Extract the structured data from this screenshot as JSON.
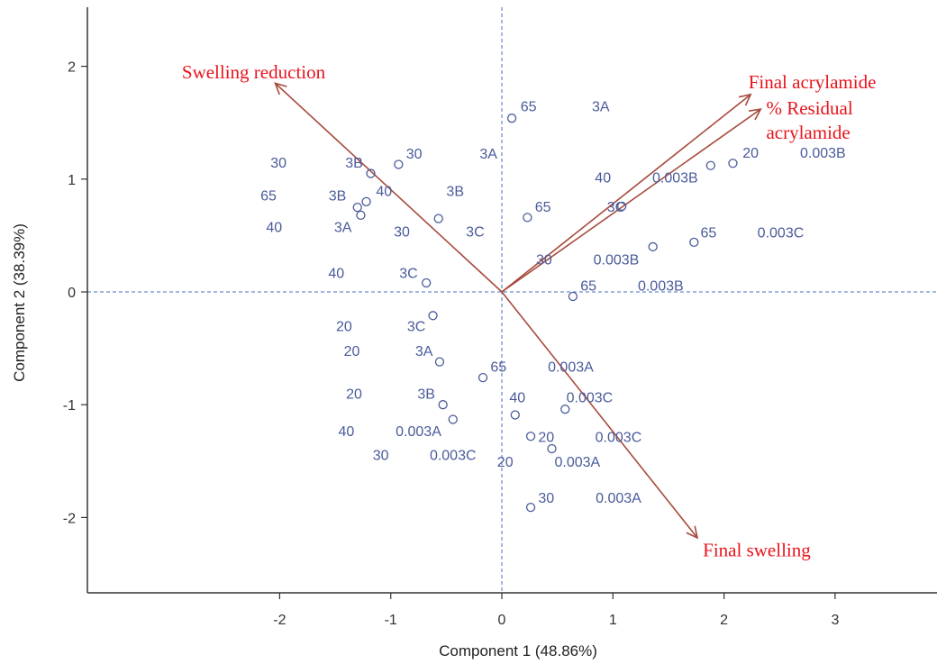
{
  "chart_data": {
    "type": "scatter",
    "title": "",
    "xlabel": "Component 1 (48.86%)",
    "ylabel": "Component 2 (38.39%)",
    "xlim": [
      -3.7,
      3.9
    ],
    "ylim": [
      -2.7,
      2.5
    ],
    "xticks": [
      -2,
      -1,
      0,
      1,
      2,
      3
    ],
    "yticks": [
      -2,
      -1,
      0,
      1,
      2
    ],
    "grid": false,
    "reference_lines": {
      "x": 0,
      "y": 0,
      "style": "dashed"
    },
    "colors": {
      "points": "#4a5b9a",
      "arrows": "#a84a3c",
      "arrow_labels": "#e8141c",
      "axes": "#333333",
      "reference": "#4a6fc0"
    },
    "points": [
      {
        "x": 0.09,
        "y": 1.54
      },
      {
        "x": -0.93,
        "y": 1.13
      },
      {
        "x": -1.18,
        "y": 1.05
      },
      {
        "x": -1.22,
        "y": 0.8
      },
      {
        "x": -1.3,
        "y": 0.75
      },
      {
        "x": -1.27,
        "y": 0.68
      },
      {
        "x": -0.57,
        "y": 0.65
      },
      {
        "x": 0.23,
        "y": 0.66
      },
      {
        "x": 1.08,
        "y": 0.76
      },
      {
        "x": 1.88,
        "y": 1.12
      },
      {
        "x": 2.08,
        "y": 1.14
      },
      {
        "x": 1.36,
        "y": 0.4
      },
      {
        "x": 1.73,
        "y": 0.44
      },
      {
        "x": -0.68,
        "y": 0.08
      },
      {
        "x": 0.64,
        "y": -0.04
      },
      {
        "x": -0.62,
        "y": -0.21
      },
      {
        "x": -0.56,
        "y": -0.62
      },
      {
        "x": -0.17,
        "y": -0.76
      },
      {
        "x": -0.53,
        "y": -1.0
      },
      {
        "x": -0.44,
        "y": -1.13
      },
      {
        "x": 0.12,
        "y": -1.09
      },
      {
        "x": 0.57,
        "y": -1.04
      },
      {
        "x": 0.26,
        "y": -1.28
      },
      {
        "x": 0.45,
        "y": -1.39
      },
      {
        "x": 0.26,
        "y": -1.91
      }
    ],
    "point_labels": [
      {
        "text": "65",
        "x": 0.24,
        "y": 1.65
      },
      {
        "text": "3A",
        "x": 0.89,
        "y": 1.65
      },
      {
        "text": "30",
        "x": -2.01,
        "y": 1.15
      },
      {
        "text": "3B",
        "x": -1.33,
        "y": 1.15
      },
      {
        "text": "30",
        "x": -0.79,
        "y": 1.23
      },
      {
        "text": "3A",
        "x": -0.12,
        "y": 1.23
      },
      {
        "text": "65",
        "x": -2.1,
        "y": 0.86
      },
      {
        "text": "3B",
        "x": -1.48,
        "y": 0.86
      },
      {
        "text": "40",
        "x": -1.06,
        "y": 0.9
      },
      {
        "text": "3B",
        "x": -0.42,
        "y": 0.9
      },
      {
        "text": "40",
        "x": 0.91,
        "y": 1.02
      },
      {
        "text": "0.003B",
        "x": 1.56,
        "y": 1.02
      },
      {
        "text": "20",
        "x": 2.24,
        "y": 1.24
      },
      {
        "text": "0.003B",
        "x": 2.89,
        "y": 1.24
      },
      {
        "text": "40",
        "x": -2.05,
        "y": 0.58
      },
      {
        "text": "3A",
        "x": -1.43,
        "y": 0.58
      },
      {
        "text": "30",
        "x": -0.9,
        "y": 0.54
      },
      {
        "text": "3C",
        "x": -0.24,
        "y": 0.54
      },
      {
        "text": "65",
        "x": 0.37,
        "y": 0.76
      },
      {
        "text": "3C",
        "x": 1.03,
        "y": 0.76
      },
      {
        "text": "65",
        "x": 1.86,
        "y": 0.53
      },
      {
        "text": "0.003C",
        "x": 2.51,
        "y": 0.53
      },
      {
        "text": "30",
        "x": 0.38,
        "y": 0.29
      },
      {
        "text": "0.003B",
        "x": 1.03,
        "y": 0.29
      },
      {
        "text": "40",
        "x": -1.49,
        "y": 0.17
      },
      {
        "text": "3C",
        "x": -0.84,
        "y": 0.17
      },
      {
        "text": "65",
        "x": 0.78,
        "y": 0.06
      },
      {
        "text": "0.003B",
        "x": 1.43,
        "y": 0.06
      },
      {
        "text": "20",
        "x": -1.42,
        "y": -0.3
      },
      {
        "text": "3C",
        "x": -0.77,
        "y": -0.3
      },
      {
        "text": "20",
        "x": -1.35,
        "y": -0.52
      },
      {
        "text": "3A",
        "x": -0.7,
        "y": -0.52
      },
      {
        "text": "65",
        "x": -0.03,
        "y": -0.66
      },
      {
        "text": "0.003A",
        "x": 0.62,
        "y": -0.66
      },
      {
        "text": "20",
        "x": -1.33,
        "y": -0.9
      },
      {
        "text": "3B",
        "x": -0.68,
        "y": -0.9
      },
      {
        "text": "40",
        "x": 0.14,
        "y": -0.93
      },
      {
        "text": "0.003C",
        "x": 0.79,
        "y": -0.93
      },
      {
        "text": "40",
        "x": -1.4,
        "y": -1.23
      },
      {
        "text": "0.003A",
        "x": -0.75,
        "y": -1.23
      },
      {
        "text": "20",
        "x": 0.4,
        "y": -1.28
      },
      {
        "text": "0.003C",
        "x": 1.05,
        "y": -1.28
      },
      {
        "text": "30",
        "x": -1.09,
        "y": -1.44
      },
      {
        "text": "0.003C",
        "x": -0.44,
        "y": -1.44
      },
      {
        "text": "20",
        "x": 0.03,
        "y": -1.5
      },
      {
        "text": "0.003A",
        "x": 0.68,
        "y": -1.5
      },
      {
        "text": "30",
        "x": 0.4,
        "y": -1.82
      },
      {
        "text": "0.003A",
        "x": 1.05,
        "y": -1.82
      }
    ],
    "arrows": [
      {
        "name": "Swelling reduction",
        "x": -2.04,
        "y": 1.85,
        "label": [
          "Swelling reduction"
        ],
        "label_x": -2.88,
        "label_y": 1.95,
        "anchor": "start"
      },
      {
        "name": "Final acrylamide",
        "x": 2.24,
        "y": 1.75,
        "label": [
          "Final acrylamide"
        ],
        "label_x": 2.22,
        "label_y": 1.86,
        "anchor": "start"
      },
      {
        "name": "% Residual acrylamide",
        "x": 2.33,
        "y": 1.62,
        "label": [
          "% Residual",
          "acrylamide"
        ],
        "label_x": 2.38,
        "label_y": 1.63,
        "anchor": "start"
      },
      {
        "name": "Final swelling",
        "x": 1.76,
        "y": -2.18,
        "label": [
          "Final swelling"
        ],
        "label_x": 1.81,
        "label_y": -2.29,
        "anchor": "start"
      }
    ]
  }
}
